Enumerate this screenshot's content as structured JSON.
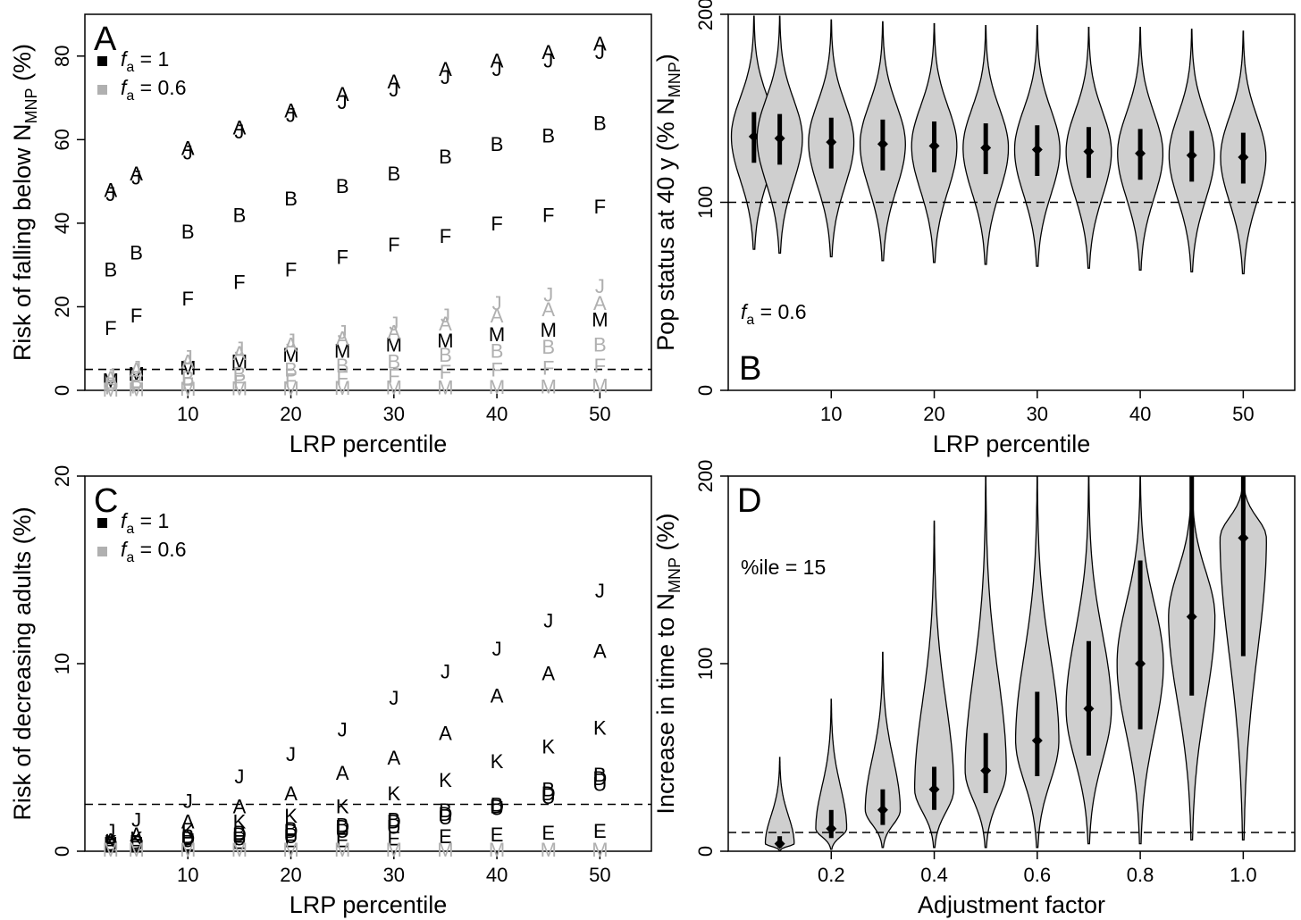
{
  "chart_data": [
    {
      "panel": "A",
      "type": "scatter",
      "xlabel": "LRP percentile",
      "ylabel": "Risk of falling below N",
      "ylabel_sub": "MNP",
      "ylabel_suffix": " (%)",
      "xlim": [
        0,
        55
      ],
      "ylim": [
        0,
        90
      ],
      "xticks": [
        10,
        20,
        30,
        40,
        50
      ],
      "yticks": [
        0,
        20,
        40,
        60,
        80
      ],
      "hline": 5,
      "legend": {
        "placement": "top-left",
        "italic": "f",
        "sub": "a",
        "entries": [
          {
            "text": " = 1",
            "color": "#000000"
          },
          {
            "text": " = 0.6",
            "color": "#b0b0b0"
          }
        ]
      },
      "x": [
        2.5,
        5,
        10,
        15,
        20,
        25,
        30,
        35,
        40,
        45,
        50
      ],
      "series": [
        {
          "name": "A",
          "color": "#000000",
          "values": [
            48,
            52,
            58,
            63,
            67,
            71,
            74,
            77,
            79,
            81,
            83
          ]
        },
        {
          "name": "J",
          "color": "#000000",
          "values": [
            47,
            51,
            57,
            62,
            66,
            69,
            72,
            75,
            77,
            79,
            81
          ]
        },
        {
          "name": "B",
          "color": "#000000",
          "values": [
            29,
            33,
            38,
            42,
            46,
            49,
            52,
            56,
            59,
            61,
            64
          ]
        },
        {
          "name": "F",
          "color": "#000000",
          "values": [
            15,
            18,
            22,
            26,
            29,
            32,
            35,
            37,
            40,
            42,
            44
          ]
        },
        {
          "name": "M",
          "color": "#000000",
          "values": [
            2.5,
            4,
            5.5,
            7,
            8.5,
            9.5,
            11,
            12,
            13.5,
            14.5,
            17
          ]
        },
        {
          "name": "J",
          "color": "#b0b0b0",
          "values": [
            3.5,
            5.5,
            8,
            10,
            12,
            14,
            16,
            18,
            21,
            23,
            25
          ]
        },
        {
          "name": "A",
          "color": "#b0b0b0",
          "values": [
            3,
            5,
            7,
            9,
            11,
            12.5,
            14,
            16,
            18,
            19.5,
            21
          ]
        },
        {
          "name": "B",
          "color": "#b0b0b0",
          "values": [
            1.5,
            2,
            3,
            4,
            5,
            6,
            7,
            8.5,
            9.5,
            10.5,
            11
          ]
        },
        {
          "name": "F",
          "color": "#b0b0b0",
          "values": [
            0.8,
            1,
            1.5,
            2,
            2.5,
            3,
            3.5,
            4.5,
            5,
            5.5,
            6
          ]
        },
        {
          "name": "M",
          "color": "#b0b0b0",
          "values": [
            0.2,
            0.3,
            0.4,
            0.5,
            0.5,
            0.6,
            0.7,
            0.8,
            0.9,
            1,
            1.2
          ]
        }
      ]
    },
    {
      "panel": "B",
      "type": "violin",
      "xlabel": "LRP percentile",
      "ylabel": "Pop status at 40 y (% N",
      "ylabel_sub": "MNP",
      "ylabel_suffix": ")",
      "xlim": [
        0,
        55
      ],
      "ylim": [
        0,
        200
      ],
      "xticks": [
        10,
        20,
        30,
        40,
        50
      ],
      "yticks": [
        0,
        100,
        200
      ],
      "hline": 100,
      "annotation": {
        "italic": "f",
        "sub": "a",
        "text": " = 0.6"
      },
      "x": [
        2.5,
        5,
        10,
        15,
        20,
        25,
        30,
        35,
        40,
        45,
        50
      ],
      "median": [
        135,
        134,
        132,
        131,
        130,
        129,
        128,
        127,
        126,
        125,
        124
      ],
      "q_low": [
        121,
        120,
        118,
        117,
        116,
        115,
        114,
        113,
        112,
        111,
        110
      ],
      "q_high": [
        148,
        147,
        145,
        144,
        143,
        142,
        141,
        140,
        139,
        138,
        137
      ],
      "min": [
        75,
        73,
        71,
        69,
        68,
        67,
        66,
        65,
        64,
        63,
        62
      ],
      "max": [
        199,
        199,
        197,
        196,
        195,
        194,
        194,
        193,
        193,
        192,
        191
      ],
      "half_width": [
        2.2,
        2.2,
        2.2,
        2.2,
        2.2,
        2.2,
        2.2,
        2.2,
        2.2,
        2.2,
        2.2
      ]
    },
    {
      "panel": "C",
      "type": "scatter",
      "xlabel": "LRP percentile",
      "ylabel": "Risk of decreasing adults (%)",
      "xlim": [
        0,
        55
      ],
      "ylim": [
        0,
        20
      ],
      "xticks": [
        10,
        20,
        30,
        40,
        50
      ],
      "yticks": [
        0,
        10,
        20
      ],
      "hline": 2.5,
      "legend": {
        "placement": "top-left",
        "italic": "f",
        "sub": "a",
        "entries": [
          {
            "text": " = 1",
            "color": "#000000"
          },
          {
            "text": " = 0.6",
            "color": "#b0b0b0"
          }
        ]
      },
      "x": [
        2.5,
        5,
        10,
        15,
        20,
        25,
        30,
        35,
        40,
        45,
        50
      ],
      "series": [
        {
          "name": "J",
          "color": "#000000",
          "values": [
            1.1,
            1.7,
            2.7,
            4,
            5.2,
            6.5,
            8.2,
            9.6,
            10.8,
            12.3,
            13.9
          ]
        },
        {
          "name": "A",
          "color": "#000000",
          "values": [
            0.6,
            0.9,
            1.6,
            2.4,
            3.1,
            4.2,
            5,
            6.3,
            8.3,
            9.5,
            10.7
          ]
        },
        {
          "name": "K",
          "color": "#000000",
          "values": [
            0.5,
            0.7,
            1.1,
            1.6,
            1.9,
            2.4,
            3.1,
            3.8,
            4.8,
            5.6,
            6.6
          ]
        },
        {
          "name": "B",
          "color": "#000000",
          "values": [
            0.4,
            0.5,
            0.8,
            1,
            1.2,
            1.4,
            1.7,
            2.2,
            2.5,
            3.3,
            4.1
          ]
        },
        {
          "name": "D",
          "color": "#000000",
          "values": [
            0.4,
            0.5,
            0.7,
            0.9,
            1.1,
            1.3,
            1.6,
            2,
            2.4,
            3.1,
            3.9
          ]
        },
        {
          "name": "U",
          "color": "#000000",
          "values": [
            0.4,
            0.4,
            0.6,
            0.7,
            0.8,
            1.1,
            1.3,
            1.8,
            2.3,
            2.9,
            3.6
          ]
        },
        {
          "name": "E",
          "color": "#000000",
          "values": [
            0.3,
            0.3,
            0.4,
            0.5,
            0.6,
            0.6,
            0.7,
            0.8,
            0.9,
            1,
            1.1
          ]
        },
        {
          "name": "M",
          "color": "#b0b0b0",
          "values": [
            0.1,
            0.1,
            0.1,
            0.1,
            0.1,
            0.1,
            0.1,
            0.1,
            0.1,
            0.1,
            0.1
          ]
        }
      ]
    },
    {
      "panel": "D",
      "type": "violin",
      "xlabel": "Adjustment factor",
      "ylabel": "Increase in time to N",
      "ylabel_sub": "MNP",
      "ylabel_suffix": " (%)",
      "xlim": [
        0,
        1.1
      ],
      "ylim": [
        0,
        200
      ],
      "xticks": [
        0.2,
        0.4,
        0.6,
        0.8,
        1.0
      ],
      "xtick_labels": [
        "0.2",
        "0.4",
        "0.6",
        "0.8",
        "1.0"
      ],
      "yticks": [
        0,
        100,
        200
      ],
      "hline": 10,
      "annotation": {
        "text": "%ile = 15"
      },
      "x": [
        0.1,
        0.2,
        0.3,
        0.4,
        0.5,
        0.6,
        0.7,
        0.8,
        0.9,
        1.0
      ],
      "median": [
        4,
        12,
        22,
        33,
        43,
        59,
        76,
        100,
        125,
        167
      ],
      "q_low": [
        2,
        7,
        14,
        22,
        31,
        40,
        51,
        65,
        83,
        104
      ],
      "q_high": [
        8,
        22,
        33,
        45,
        63,
        85,
        112,
        155,
        200,
        200
      ],
      "min": [
        0.5,
        1,
        2,
        2,
        2,
        2,
        4,
        4,
        6,
        6
      ],
      "max": [
        50,
        81,
        106,
        176,
        200,
        200,
        200,
        200,
        200,
        200
      ],
      "half_width": [
        0.028,
        0.03,
        0.034,
        0.038,
        0.04,
        0.042,
        0.044,
        0.045,
        0.045,
        0.045
      ]
    }
  ]
}
